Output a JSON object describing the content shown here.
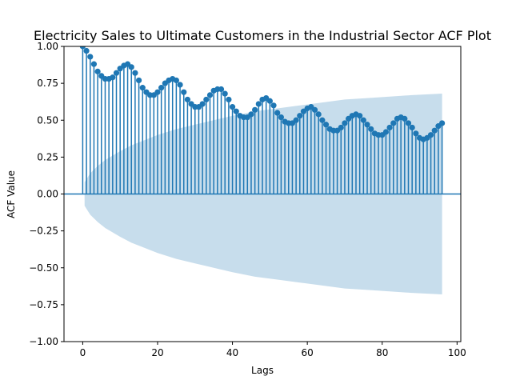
{
  "chart_data": {
    "type": "scatter",
    "title": "Electricity Sales to Ultimate Customers in the Industrial Sector ACF Plot",
    "xlabel": "Lags",
    "ylabel": "ACF Value",
    "xlim": [
      -5,
      101
    ],
    "ylim": [
      -1.0,
      1.0
    ],
    "xticks": [
      0,
      20,
      40,
      60,
      80,
      100
    ],
    "yticks": [
      -1.0,
      -0.75,
      -0.5,
      -0.25,
      0.0,
      0.25,
      0.5,
      0.75,
      1.0
    ],
    "xtick_labels": [
      "0",
      "20",
      "40",
      "60",
      "80",
      "100"
    ],
    "ytick_labels": [
      "−1.00",
      "−0.75",
      "−0.50",
      "−0.25",
      "0.00",
      "0.25",
      "0.50",
      "0.75",
      "1.00"
    ],
    "grid": false,
    "colors": {
      "series": "#1f77b4",
      "band": "#1f77b4"
    },
    "lags": [
      0,
      1,
      2,
      3,
      4,
      5,
      6,
      7,
      8,
      9,
      10,
      11,
      12,
      13,
      14,
      15,
      16,
      17,
      18,
      19,
      20,
      21,
      22,
      23,
      24,
      25,
      26,
      27,
      28,
      29,
      30,
      31,
      32,
      33,
      34,
      35,
      36,
      37,
      38,
      39,
      40,
      41,
      42,
      43,
      44,
      45,
      46,
      47,
      48,
      49,
      50,
      51,
      52,
      53,
      54,
      55,
      56,
      57,
      58,
      59,
      60,
      61,
      62,
      63,
      64,
      65,
      66,
      67,
      68,
      69,
      70,
      71,
      72,
      73,
      74,
      75,
      76,
      77,
      78,
      79,
      80,
      81,
      82,
      83,
      84,
      85,
      86,
      87,
      88,
      89,
      90,
      91,
      92,
      93,
      94,
      95,
      96
    ],
    "acf": [
      1.0,
      0.97,
      0.93,
      0.88,
      0.83,
      0.8,
      0.78,
      0.78,
      0.79,
      0.82,
      0.85,
      0.87,
      0.88,
      0.86,
      0.82,
      0.77,
      0.72,
      0.69,
      0.67,
      0.67,
      0.69,
      0.72,
      0.75,
      0.77,
      0.78,
      0.77,
      0.74,
      0.69,
      0.64,
      0.61,
      0.59,
      0.59,
      0.61,
      0.64,
      0.67,
      0.7,
      0.71,
      0.71,
      0.68,
      0.64,
      0.59,
      0.56,
      0.53,
      0.52,
      0.52,
      0.54,
      0.57,
      0.61,
      0.64,
      0.65,
      0.63,
      0.6,
      0.55,
      0.52,
      0.49,
      0.48,
      0.48,
      0.5,
      0.53,
      0.56,
      0.58,
      0.59,
      0.57,
      0.54,
      0.5,
      0.47,
      0.44,
      0.43,
      0.43,
      0.45,
      0.48,
      0.51,
      0.53,
      0.54,
      0.53,
      0.5,
      0.47,
      0.44,
      0.41,
      0.4,
      0.4,
      0.42,
      0.45,
      0.48,
      0.51,
      0.52,
      0.51,
      0.48,
      0.45,
      0.41,
      0.38,
      0.37,
      0.38,
      0.4,
      0.43,
      0.46,
      0.48
    ],
    "confint_lags": [
      0.5,
      2,
      4,
      6,
      8,
      10,
      13,
      16,
      20,
      25,
      30,
      35,
      40,
      46,
      52,
      58,
      64,
      70,
      76,
      82,
      88,
      96
    ],
    "confint_upper": [
      0.08,
      0.14,
      0.19,
      0.23,
      0.26,
      0.29,
      0.33,
      0.36,
      0.4,
      0.44,
      0.47,
      0.5,
      0.53,
      0.56,
      0.58,
      0.6,
      0.62,
      0.64,
      0.65,
      0.66,
      0.67,
      0.68
    ],
    "confint_lower": [
      -0.08,
      -0.14,
      -0.19,
      -0.23,
      -0.26,
      -0.29,
      -0.33,
      -0.36,
      -0.4,
      -0.44,
      -0.47,
      -0.5,
      -0.53,
      -0.56,
      -0.58,
      -0.6,
      -0.62,
      -0.64,
      -0.65,
      -0.66,
      -0.67,
      -0.68
    ]
  }
}
